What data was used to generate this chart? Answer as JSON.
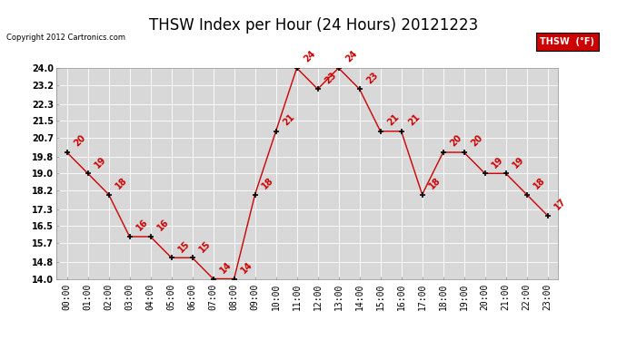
{
  "title": "THSW Index per Hour (24 Hours) 20121223",
  "copyright": "Copyright 2012 Cartronics.com",
  "legend_label": "THSW  (°F)",
  "hours": [
    0,
    1,
    2,
    3,
    4,
    5,
    6,
    7,
    8,
    9,
    10,
    11,
    12,
    13,
    14,
    15,
    16,
    17,
    18,
    19,
    20,
    21,
    22,
    23
  ],
  "values": [
    20,
    19,
    18,
    16,
    16,
    15,
    15,
    14,
    14,
    18,
    21,
    24,
    23,
    24,
    23,
    21,
    21,
    18,
    20,
    20,
    19,
    19,
    18,
    17
  ],
  "x_labels": [
    "00:00",
    "01:00",
    "02:00",
    "03:00",
    "04:00",
    "05:00",
    "06:00",
    "07:00",
    "08:00",
    "09:00",
    "10:00",
    "11:00",
    "12:00",
    "13:00",
    "14:00",
    "15:00",
    "16:00",
    "17:00",
    "18:00",
    "19:00",
    "20:00",
    "21:00",
    "22:00",
    "23:00"
  ],
  "ylim": [
    14.0,
    24.0
  ],
  "y_ticks": [
    14.0,
    14.8,
    15.7,
    16.5,
    17.3,
    18.2,
    19.0,
    19.8,
    20.7,
    21.5,
    22.3,
    23.2,
    24.0
  ],
  "line_color": "#cc0000",
  "marker_color": "#000000",
  "bg_color": "#ffffff",
  "plot_bg_color": "#d8d8d8",
  "grid_color": "#ffffff",
  "title_fontsize": 12,
  "tick_fontsize": 7,
  "annotation_fontsize": 7,
  "legend_bg_color": "#cc0000",
  "legend_text_color": "#ffffff"
}
